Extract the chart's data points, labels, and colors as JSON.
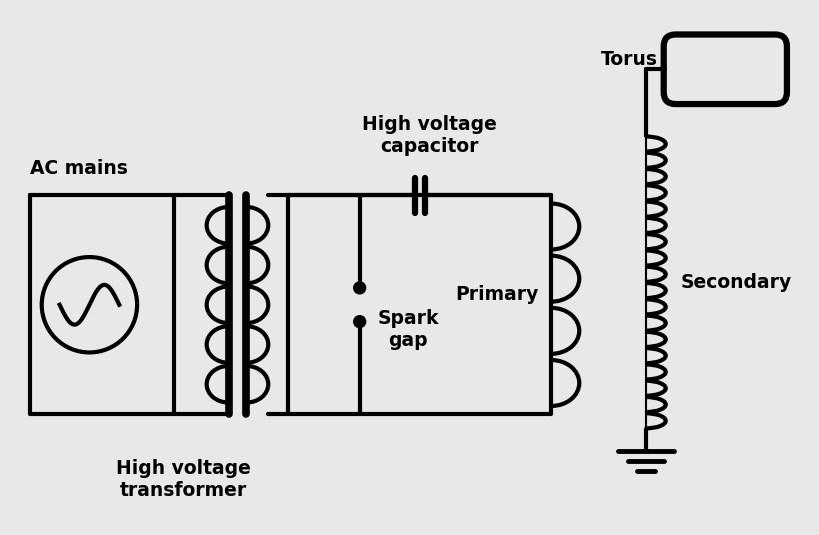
{
  "bg_color": "#e8e8e8",
  "line_color": "#000000",
  "labels": {
    "ac_mains": "AC mains",
    "transformer": "High voltage\ntransformer",
    "capacitor": "High voltage\ncapacitor",
    "primary": "Primary",
    "spark_gap": "Spark\ngap",
    "secondary": "Secondary",
    "torus": "Torus"
  },
  "font_size": 13.5
}
